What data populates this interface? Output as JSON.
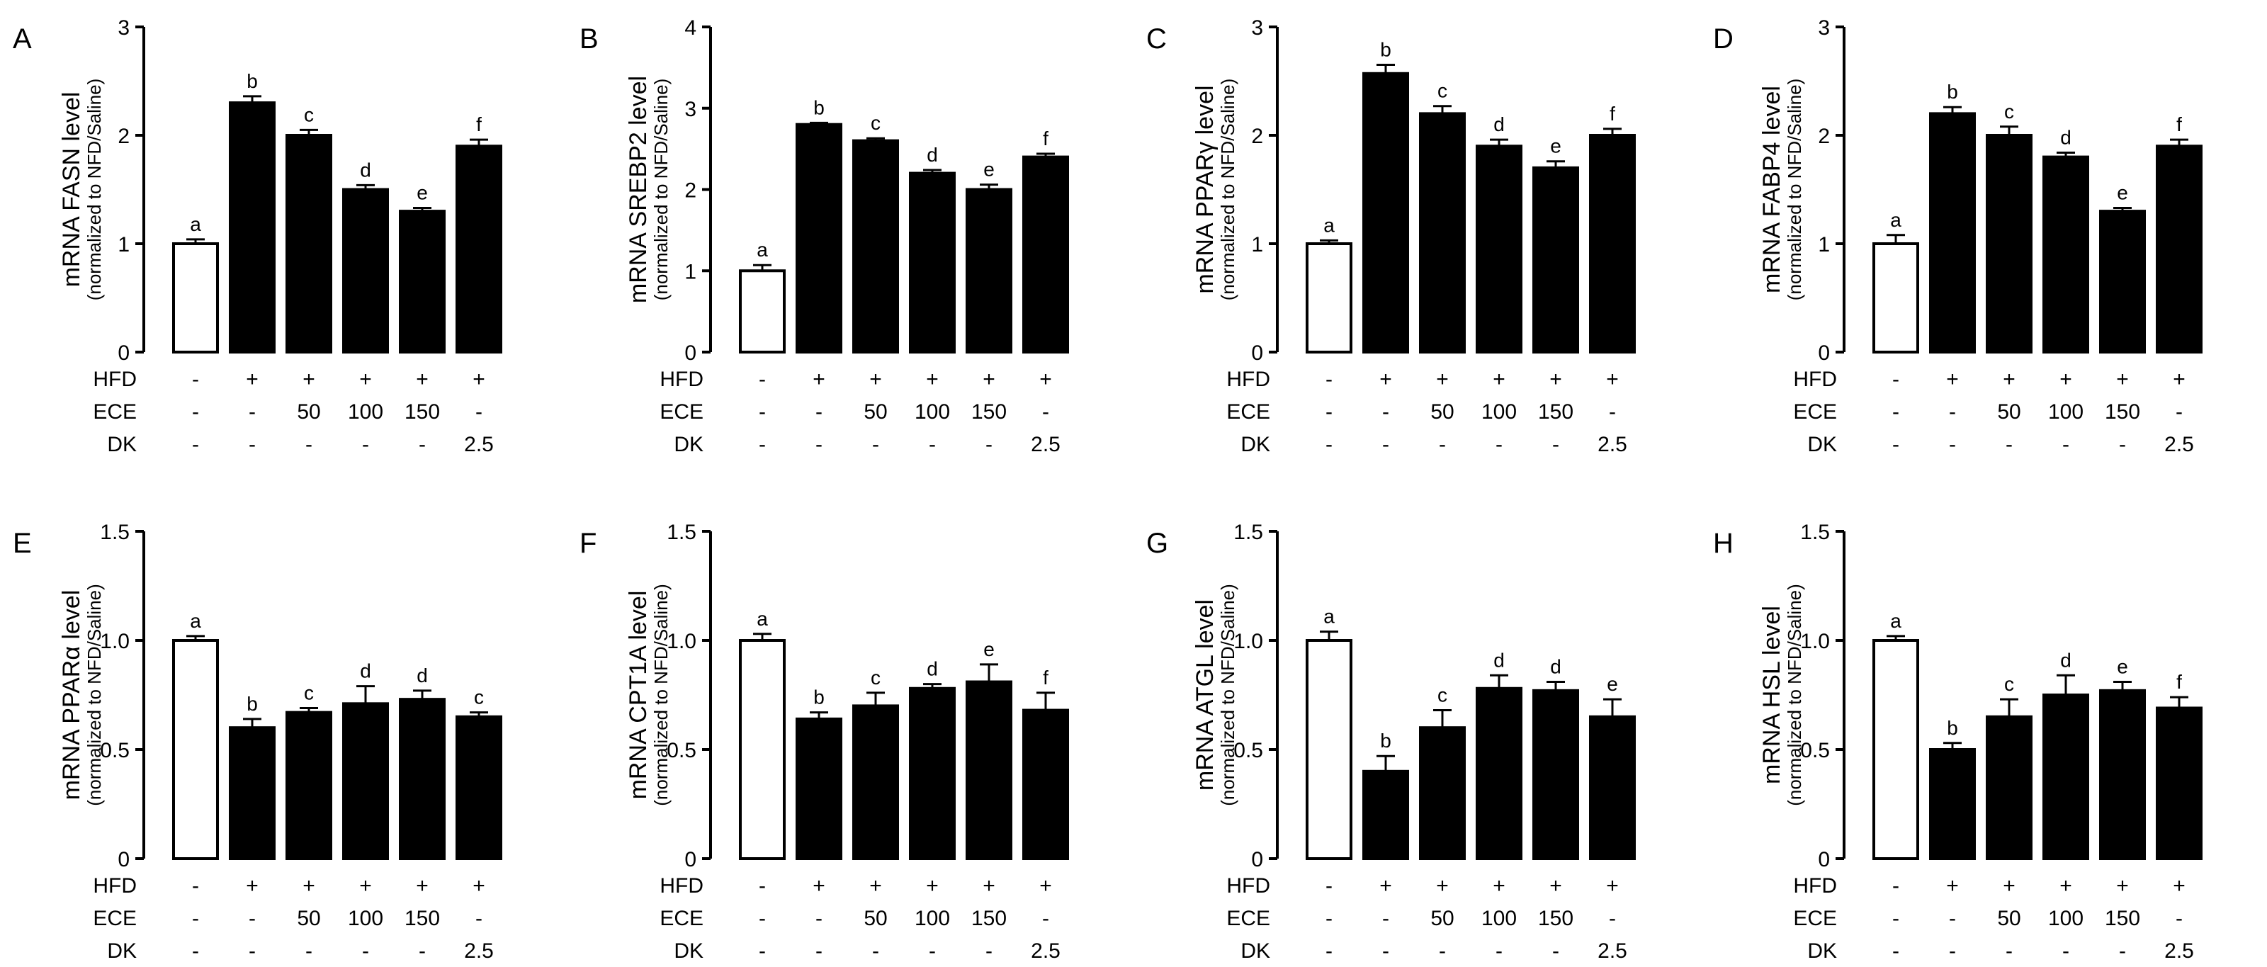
{
  "treatment_rows": [
    {
      "label": "HFD",
      "values": [
        "-",
        "+",
        "+",
        "+",
        "+",
        "+"
      ]
    },
    {
      "label": "ECE",
      "values": [
        "-",
        "-",
        "50",
        "100",
        "150",
        "-"
      ]
    },
    {
      "label": "DK",
      "values": [
        "-",
        "-",
        "-",
        "-",
        "-",
        "2.5"
      ]
    }
  ],
  "colors": {
    "first_bar": "#ffffff",
    "other_bars": "#000000",
    "stroke": "#000000"
  },
  "chart_data": [
    {
      "type": "bar",
      "panel": "A",
      "ylabel": "mRNA FASN level",
      "ylabel_sub": "(normalized to NFD/Saline)",
      "ylim": [
        0,
        3
      ],
      "ticks": [
        "0",
        "1",
        "2",
        "3"
      ],
      "values": [
        1.0,
        2.3,
        2.0,
        1.5,
        1.3,
        1.9
      ],
      "errors": [
        0.04,
        0.06,
        0.05,
        0.04,
        0.03,
        0.06
      ],
      "letters": [
        "a",
        "b",
        "c",
        "d",
        "e",
        "f"
      ]
    },
    {
      "type": "bar",
      "panel": "B",
      "ylabel": "mRNA SREBP2 level",
      "ylabel_sub": "(normalized to NFD/Saline)",
      "ylim": [
        0,
        4
      ],
      "ticks": [
        "0",
        "1",
        "2",
        "3",
        "4"
      ],
      "values": [
        1.0,
        2.8,
        2.6,
        2.2,
        2.0,
        2.4
      ],
      "errors": [
        0.07,
        0.02,
        0.03,
        0.04,
        0.06,
        0.04
      ],
      "letters": [
        "a",
        "b",
        "c",
        "d",
        "e",
        "f"
      ]
    },
    {
      "type": "bar",
      "panel": "C",
      "ylabel": "mRNA PPARγ level",
      "ylabel_sub": "(normalized to NFD/Saline)",
      "ylim": [
        0,
        3
      ],
      "ticks": [
        "0",
        "1",
        "2",
        "3"
      ],
      "values": [
        1.0,
        2.57,
        2.2,
        1.9,
        1.7,
        2.0
      ],
      "errors": [
        0.03,
        0.08,
        0.07,
        0.06,
        0.06,
        0.06
      ],
      "letters": [
        "a",
        "b",
        "c",
        "d",
        "e",
        "f"
      ]
    },
    {
      "type": "bar",
      "panel": "D",
      "ylabel": "mRNA FABP4 level",
      "ylabel_sub": "(normalized to NFD/Saline)",
      "ylim": [
        0,
        3
      ],
      "ticks": [
        "0",
        "1",
        "2",
        "3"
      ],
      "values": [
        1.0,
        2.2,
        2.0,
        1.8,
        1.3,
        1.9
      ],
      "errors": [
        0.08,
        0.06,
        0.08,
        0.04,
        0.03,
        0.06
      ],
      "letters": [
        "a",
        "b",
        "c",
        "d",
        "e",
        "f"
      ]
    },
    {
      "type": "bar",
      "panel": "E",
      "ylabel": "mRNA PPARα level",
      "ylabel_sub": "(normalized to NFD/Saline)",
      "ylim": [
        0,
        1.5
      ],
      "ticks": [
        "0",
        "0.5",
        "1.0",
        "1.5"
      ],
      "values": [
        1.0,
        0.6,
        0.67,
        0.71,
        0.73,
        0.65
      ],
      "errors": [
        0.02,
        0.04,
        0.02,
        0.08,
        0.04,
        0.02
      ],
      "letters": [
        "a",
        "b",
        "c",
        "d",
        "d",
        "c"
      ]
    },
    {
      "type": "bar",
      "panel": "F",
      "ylabel": "mRNA CPT1A level",
      "ylabel_sub": "(normalized to NFD/Saline)",
      "ylim": [
        0,
        1.5
      ],
      "ticks": [
        "0",
        "0.5",
        "1.0",
        "1.5"
      ],
      "values": [
        1.0,
        0.64,
        0.7,
        0.78,
        0.81,
        0.68
      ],
      "errors": [
        0.03,
        0.03,
        0.06,
        0.02,
        0.08,
        0.08
      ],
      "letters": [
        "a",
        "b",
        "c",
        "d",
        "e",
        "f"
      ]
    },
    {
      "type": "bar",
      "panel": "G",
      "ylabel": "mRNA ATGL level",
      "ylabel_sub": "(normalized to NFD/Saline)",
      "ylim": [
        0,
        1.5
      ],
      "ticks": [
        "0",
        "0.5",
        "1.0",
        "1.5"
      ],
      "values": [
        1.0,
        0.4,
        0.6,
        0.78,
        0.77,
        0.65
      ],
      "errors": [
        0.04,
        0.07,
        0.08,
        0.06,
        0.04,
        0.08
      ],
      "letters": [
        "a",
        "b",
        "c",
        "d",
        "d",
        "e"
      ]
    },
    {
      "type": "bar",
      "panel": "H",
      "ylabel": "mRNA HSL level",
      "ylabel_sub": "(normalized to NFD/Saline)",
      "ylim": [
        0,
        1.5
      ],
      "ticks": [
        "0",
        "0.5",
        "1.0",
        "1.5"
      ],
      "values": [
        1.0,
        0.5,
        0.65,
        0.75,
        0.77,
        0.69
      ],
      "errors": [
        0.02,
        0.03,
        0.08,
        0.09,
        0.04,
        0.05
      ],
      "letters": [
        "a",
        "b",
        "c",
        "d",
        "e",
        "f"
      ]
    }
  ]
}
